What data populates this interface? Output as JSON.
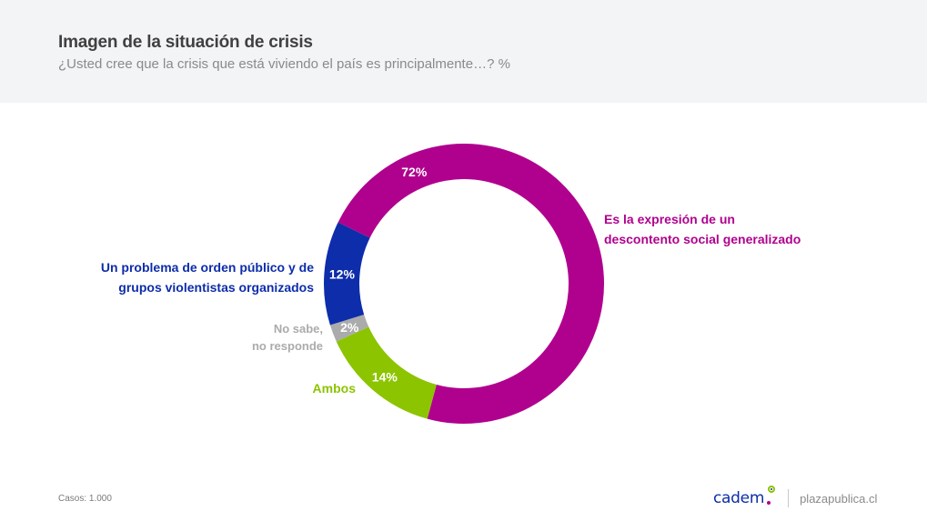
{
  "header": {
    "title": "Imagen de la situación de crisis",
    "subtitle": "¿Usted cree que la crisis que está viviendo el país es principalmente…? %"
  },
  "chart_data": {
    "type": "pie",
    "variant": "donut",
    "title": "Imagen de la situación de crisis",
    "subtitle": "¿Usted cree que la crisis que está viviendo el país es principalmente…? %",
    "start_angle_deg_clockwise_from_top": -64,
    "direction": "clockwise",
    "slices": [
      {
        "label": "Es la expresión de un descontento social generalizado",
        "label_lines": [
          "Es la expresión de un",
          "descontento social generalizado"
        ],
        "value": 72,
        "display": "72%",
        "color": "#b0008e"
      },
      {
        "label": "Ambos",
        "label_lines": [
          "Ambos"
        ],
        "value": 14,
        "display": "14%",
        "color": "#8cc400"
      },
      {
        "label": "No sabe, no responde",
        "label_lines": [
          "No sabe,",
          "no responde"
        ],
        "value": 2,
        "display": "2%",
        "color": "#ababab"
      },
      {
        "label": "Un problema de orden público y de grupos violentistas organizados",
        "label_lines": [
          "Un problema de orden público y de",
          "grupos violentistas organizados"
        ],
        "value": 12,
        "display": "12%",
        "color": "#0d2daa"
      }
    ],
    "units": "%"
  },
  "footer": {
    "cases": "Casos: 1.000",
    "brand": "cadem",
    "site": "plazapublica.cl"
  }
}
